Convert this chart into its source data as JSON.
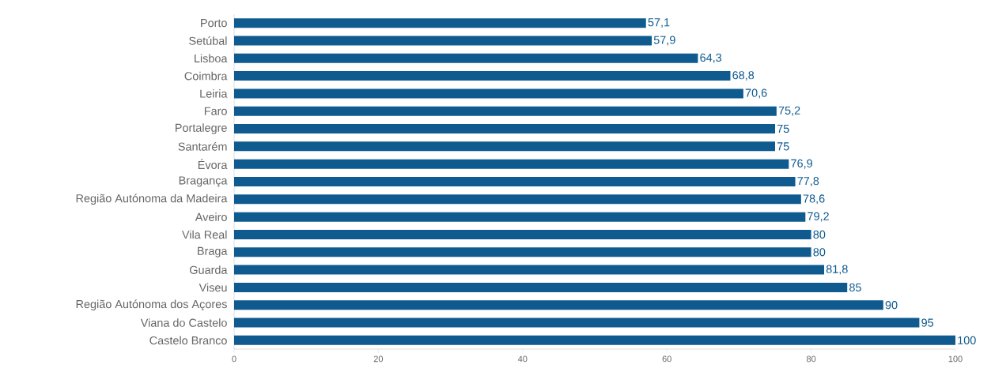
{
  "chart_data": {
    "type": "bar",
    "orientation": "horizontal",
    "categories": [
      "Porto",
      "Setúbal",
      "Lisboa",
      "Coimbra",
      "Leiria",
      "Faro",
      "Portalegre",
      "Santarém",
      "Évora",
      "Bragança",
      "Região Autónoma da Madeira",
      "Aveiro",
      "Vila Real",
      "Braga",
      "Guarda",
      "Viseu",
      "Região Autónoma dos Açores",
      "Viana do Castelo",
      "Castelo Branco"
    ],
    "values": [
      57.1,
      57.9,
      64.3,
      68.8,
      70.6,
      75.2,
      75,
      75,
      76.9,
      77.8,
      78.6,
      79.2,
      80,
      80,
      81.8,
      85,
      90,
      95,
      100
    ],
    "value_labels": [
      "57,1",
      "57,9",
      "64,3",
      "68,8",
      "70,6",
      "75,2",
      "75",
      "75",
      "76,9",
      "77,8",
      "78,6",
      "79,2",
      "80",
      "80",
      "81,8",
      "85",
      "90",
      "95",
      "100"
    ],
    "color": "#0f5a8f",
    "xlim": [
      0,
      100
    ],
    "xticks": [
      0,
      20,
      40,
      60,
      80,
      100
    ]
  }
}
